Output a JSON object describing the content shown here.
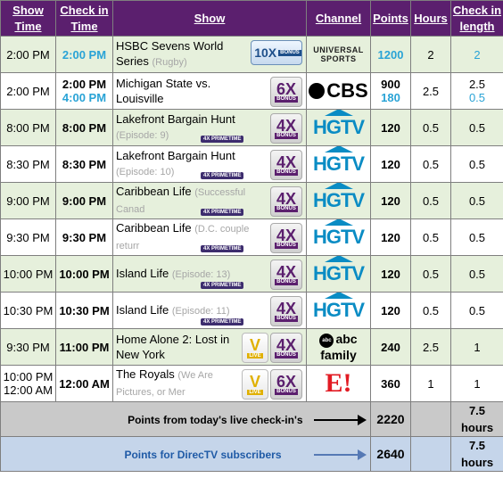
{
  "headers": {
    "show_time": "Show Time",
    "check_in_time": "Check in Time",
    "show": "Show",
    "channel": "Channel",
    "points": "Points",
    "hours": "Hours",
    "check_in_length": "Check in length"
  },
  "rows": [
    {
      "show_time": "2:00 PM",
      "check_in": "2:00 PM",
      "check_in_2": "",
      "title": "HSBC Sevens World Series",
      "subtitle": "(Rugby)",
      "badge": "10X",
      "badge_label": "BONUS",
      "channel": "UNIVERSAL SPORTS",
      "points": "1200",
      "points_2": "",
      "hours": "2",
      "length": "2",
      "length_2": ""
    },
    {
      "show_time": "2:00 PM",
      "check_in": "2:00 PM",
      "check_in_2": "4:00 PM",
      "title": "Michigan State vs. Louisville",
      "subtitle": "",
      "badge": "6X",
      "badge_label": "BONUS",
      "channel": "CBS",
      "points": "900",
      "points_2": "180",
      "hours": "2.5",
      "length": "2.5",
      "length_2": "0.5"
    },
    {
      "show_time": "8:00 PM",
      "check_in": "8:00 PM",
      "check_in_2": "",
      "title": "Lakefront Bargain Hunt",
      "subtitle": "(Episode: 9)",
      "badge": "4X",
      "badge_label": "BONUS",
      "prime": "4X PRIMETIME",
      "channel": "HGTV",
      "points": "120",
      "points_2": "",
      "hours": "0.5",
      "length": "0.5",
      "length_2": ""
    },
    {
      "show_time": "8:30 PM",
      "check_in": "8:30 PM",
      "check_in_2": "",
      "title": "Lakefront Bargain Hunt",
      "subtitle": "(Episode: 10)",
      "badge": "4X",
      "badge_label": "BONUS",
      "prime": "4X PRIMETIME",
      "channel": "HGTV",
      "points": "120",
      "points_2": "",
      "hours": "0.5",
      "length": "0.5",
      "length_2": ""
    },
    {
      "show_time": "9:00 PM",
      "check_in": "9:00 PM",
      "check_in_2": "",
      "title": "Caribbean Life",
      "subtitle": "(Successful Canad",
      "badge": "4X",
      "badge_label": "BONUS",
      "prime": "4X PRIMETIME",
      "channel": "HGTV",
      "points": "120",
      "points_2": "",
      "hours": "0.5",
      "length": "0.5",
      "length_2": ""
    },
    {
      "show_time": "9:30 PM",
      "check_in": "9:30 PM",
      "check_in_2": "",
      "title": "Caribbean Life",
      "subtitle": "(D.C. couple returr",
      "badge": "4X",
      "badge_label": "BONUS",
      "prime": "4X PRIMETIME",
      "channel": "HGTV",
      "points": "120",
      "points_2": "",
      "hours": "0.5",
      "length": "0.5",
      "length_2": ""
    },
    {
      "show_time": "10:00 PM",
      "check_in": "10:00 PM",
      "check_in_2": "",
      "title": "Island Life",
      "subtitle": "(Episode: 13)",
      "badge": "4X",
      "badge_label": "BONUS",
      "prime": "4X PRIMETIME",
      "channel": "HGTV",
      "points": "120",
      "points_2": "",
      "hours": "0.5",
      "length": "0.5",
      "length_2": ""
    },
    {
      "show_time": "10:30 PM",
      "check_in": "10:30 PM",
      "check_in_2": "",
      "title": "Island Life",
      "subtitle": "(Episode: 11)",
      "badge": "4X",
      "badge_label": "BONUS",
      "prime": "4X PRIMETIME",
      "channel": "HGTV",
      "points": "120",
      "points_2": "",
      "hours": "0.5",
      "length": "0.5",
      "length_2": ""
    },
    {
      "show_time": "9:30 PM",
      "check_in": "11:00 PM",
      "check_in_2": "",
      "title": "Home Alone 2: Lost in New York",
      "subtitle": "",
      "live": "V",
      "live_label": "LIVE",
      "badge": "4X",
      "badge_label": "BONUS",
      "channel": "abc family",
      "points": "240",
      "points_2": "",
      "hours": "2.5",
      "length": "1",
      "length_2": ""
    },
    {
      "show_time": "10:00 PM",
      "show_time_2": "12:00 AM",
      "check_in": "12:00 AM",
      "check_in_2": "",
      "title": "The Royals",
      "subtitle": "(We Are Pictures, or Mer",
      "live": "V",
      "live_label": "LIVE",
      "badge": "6X",
      "badge_label": "BONUS",
      "channel": "E!",
      "points": "360",
      "points_2": "",
      "hours": "1",
      "length": "1",
      "length_2": ""
    }
  ],
  "summary": [
    {
      "label": "Points from today's live check-in's",
      "points": "2220",
      "hours_num": "7.5",
      "hours_unit": "hours"
    },
    {
      "label": "Points for DirecTV subscribers",
      "points": "2640",
      "hours_num": "7.5",
      "hours_unit": "hours"
    }
  ],
  "colors": {
    "header_bg": "#5b1f6e",
    "row_alt": "#e6f0dc",
    "accent_blue": "#29a3d6",
    "summary_gray": "#c9c9c9",
    "summary_blue": "#c5d5ea"
  }
}
